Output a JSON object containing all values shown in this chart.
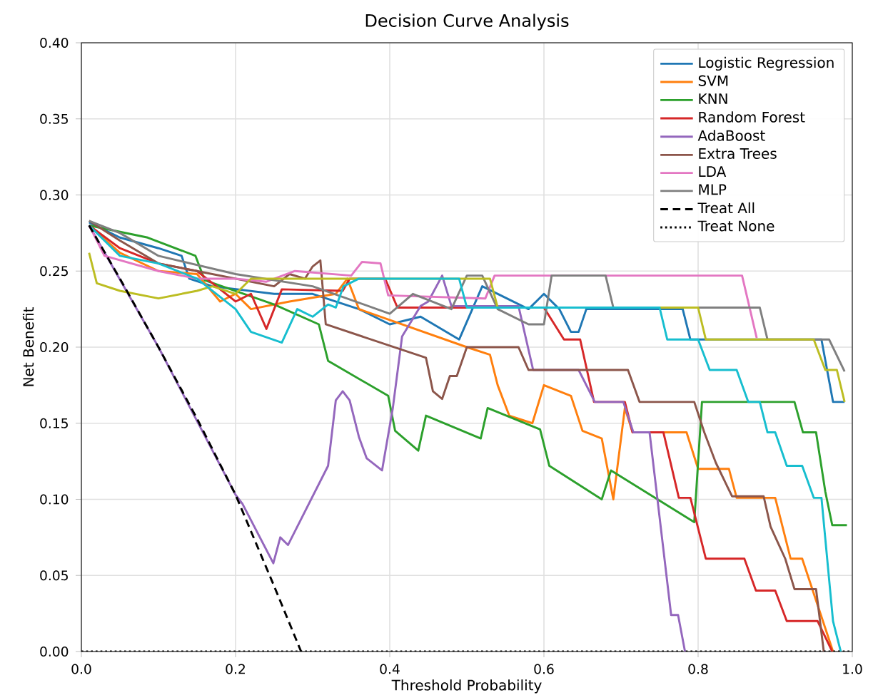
{
  "chart_data": {
    "type": "line",
    "title": "Decision Curve Analysis",
    "xlabel": "Threshold Probability",
    "ylabel": "Net Benefit",
    "xlim": [
      0,
      1
    ],
    "ylim": [
      0,
      0.4
    ],
    "xticks": [
      {
        "value": 0,
        "label": "0.0"
      },
      {
        "value": 0.2,
        "label": "0.2"
      },
      {
        "value": 0.4,
        "label": "0.4"
      },
      {
        "value": 0.6,
        "label": "0.6"
      },
      {
        "value": 0.8,
        "label": "0.8"
      },
      {
        "value": 1,
        "label": "1.0"
      }
    ],
    "yticks": [
      {
        "value": 0,
        "label": "0.00"
      },
      {
        "value": 0.05,
        "label": "0.05"
      },
      {
        "value": 0.1,
        "label": "0.10"
      },
      {
        "value": 0.15,
        "label": "0.15"
      },
      {
        "value": 0.2,
        "label": "0.20"
      },
      {
        "value": 0.25,
        "label": "0.25"
      },
      {
        "value": 0.3,
        "label": "0.30"
      },
      {
        "value": 0.35,
        "label": "0.35"
      },
      {
        "value": 0.4,
        "label": "0.40"
      }
    ],
    "grid": true,
    "legend": "top right",
    "marker": "none",
    "series": [
      {
        "name": "Logistic Regression",
        "color": "#1f77b4",
        "x": [
          0.01,
          0.05,
          0.1,
          0.13,
          0.14,
          0.17,
          0.25,
          0.3,
          0.36,
          0.4,
          0.44,
          0.49,
          0.52,
          0.58,
          0.6,
          0.62,
          0.635,
          0.645,
          0.655,
          0.78,
          0.79,
          0.96,
          0.975,
          0.99
        ],
        "values": [
          0.282,
          0.272,
          0.265,
          0.26,
          0.245,
          0.24,
          0.235,
          0.235,
          0.225,
          0.215,
          0.22,
          0.205,
          0.24,
          0.225,
          0.235,
          0.225,
          0.21,
          0.21,
          0.225,
          0.225,
          0.205,
          0.205,
          0.164,
          0.164
        ]
      },
      {
        "name": "SVM",
        "color": "#ff7f0e",
        "x": [
          0.01,
          0.05,
          0.1,
          0.15,
          0.18,
          0.2,
          0.22,
          0.27,
          0.33,
          0.345,
          0.36,
          0.5,
          0.53,
          0.54,
          0.555,
          0.585,
          0.6,
          0.635,
          0.65,
          0.675,
          0.69,
          0.705,
          0.715,
          0.785,
          0.8,
          0.84,
          0.85,
          0.9,
          0.92,
          0.935,
          0.975
        ],
        "values": [
          0.28,
          0.262,
          0.25,
          0.248,
          0.23,
          0.235,
          0.225,
          0.23,
          0.235,
          0.245,
          0.225,
          0.2,
          0.195,
          0.175,
          0.155,
          0.15,
          0.175,
          0.168,
          0.145,
          0.14,
          0.1,
          0.16,
          0.144,
          0.144,
          0.12,
          0.12,
          0.101,
          0.101,
          0.061,
          0.061,
          0
        ]
      },
      {
        "name": "KNN",
        "color": "#2ca02c",
        "x": [
          0.01,
          0.086,
          0.148,
          0.16,
          0.25,
          0.308,
          0.32,
          0.398,
          0.407,
          0.437,
          0.447,
          0.518,
          0.527,
          0.595,
          0.607,
          0.675,
          0.687,
          0.795,
          0.805,
          0.925,
          0.936,
          0.953,
          0.965,
          0.974,
          0.993
        ],
        "values": [
          0.28,
          0.272,
          0.26,
          0.244,
          0.228,
          0.215,
          0.191,
          0.168,
          0.145,
          0.132,
          0.155,
          0.14,
          0.16,
          0.146,
          0.122,
          0.1,
          0.119,
          0.085,
          0.164,
          0.164,
          0.144,
          0.144,
          0.105,
          0.083,
          0.083
        ]
      },
      {
        "name": "Random Forest",
        "color": "#d62728",
        "x": [
          0.01,
          0.05,
          0.1,
          0.15,
          0.2,
          0.22,
          0.24,
          0.26,
          0.339,
          0.348,
          0.394,
          0.41,
          0.6,
          0.626,
          0.647,
          0.665,
          0.705,
          0.715,
          0.755,
          0.775,
          0.79,
          0.81,
          0.86,
          0.875,
          0.9,
          0.915,
          0.955,
          0.974
        ],
        "values": [
          0.28,
          0.265,
          0.255,
          0.25,
          0.23,
          0.235,
          0.212,
          0.238,
          0.237,
          0.245,
          0.245,
          0.226,
          0.226,
          0.205,
          0.205,
          0.164,
          0.164,
          0.144,
          0.144,
          0.101,
          0.101,
          0.061,
          0.061,
          0.04,
          0.04,
          0.02,
          0.02,
          0
        ]
      },
      {
        "name": "AdaBoost",
        "color": "#9467bd",
        "x": [
          0.01,
          0.1,
          0.2,
          0.209,
          0.249,
          0.258,
          0.268,
          0.286,
          0.32,
          0.33,
          0.339,
          0.348,
          0.36,
          0.37,
          0.39,
          0.404,
          0.416,
          0.44,
          0.45,
          0.468,
          0.48,
          0.567,
          0.586,
          0.645,
          0.666,
          0.703,
          0.716,
          0.737,
          0.765,
          0.774,
          0.783
        ],
        "values": [
          0.28,
          0.2,
          0.103,
          0.097,
          0.058,
          0.075,
          0.07,
          0.088,
          0.122,
          0.165,
          0.171,
          0.165,
          0.141,
          0.127,
          0.119,
          0.16,
          0.207,
          0.227,
          0.23,
          0.247,
          0.227,
          0.227,
          0.185,
          0.185,
          0.164,
          0.164,
          0.144,
          0.144,
          0.024,
          0.024,
          0
        ]
      },
      {
        "name": "Extra Trees",
        "color": "#8c564b",
        "x": [
          0.01,
          0.05,
          0.1,
          0.15,
          0.2,
          0.25,
          0.27,
          0.29,
          0.3,
          0.31,
          0.317,
          0.447,
          0.456,
          0.468,
          0.478,
          0.487,
          0.5,
          0.567,
          0.58,
          0.709,
          0.724,
          0.795,
          0.808,
          0.823,
          0.844,
          0.885,
          0.894,
          0.913,
          0.925,
          0.953,
          0.963
        ],
        "values": [
          0.283,
          0.27,
          0.255,
          0.25,
          0.245,
          0.24,
          0.248,
          0.245,
          0.253,
          0.257,
          0.215,
          0.193,
          0.171,
          0.166,
          0.181,
          0.181,
          0.2,
          0.2,
          0.185,
          0.185,
          0.164,
          0.164,
          0.144,
          0.124,
          0.102,
          0.102,
          0.082,
          0.061,
          0.041,
          0.041,
          0
        ]
      },
      {
        "name": "LDA",
        "color": "#e377c2",
        "x": [
          0.01,
          0.03,
          0.1,
          0.15,
          0.2,
          0.24,
          0.277,
          0.35,
          0.364,
          0.388,
          0.398,
          0.524,
          0.536,
          0.857,
          0.876
        ],
        "values": [
          0.28,
          0.26,
          0.25,
          0.245,
          0.245,
          0.243,
          0.25,
          0.247,
          0.256,
          0.255,
          0.234,
          0.232,
          0.247,
          0.247,
          0.206
        ]
      },
      {
        "name": "MLP",
        "color": "#7f7f7f",
        "x": [
          0.01,
          0.05,
          0.1,
          0.2,
          0.3,
          0.4,
          0.43,
          0.48,
          0.5,
          0.52,
          0.54,
          0.58,
          0.6,
          0.61,
          0.68,
          0.69,
          0.88,
          0.89,
          0.97,
          0.99
        ],
        "values": [
          0.283,
          0.275,
          0.26,
          0.248,
          0.24,
          0.222,
          0.235,
          0.225,
          0.247,
          0.247,
          0.225,
          0.215,
          0.215,
          0.247,
          0.247,
          0.226,
          0.226,
          0.205,
          0.205,
          0.184
        ]
      },
      {
        "color": "#bcbd22",
        "x": [
          0.01,
          0.02,
          0.05,
          0.1,
          0.15,
          0.17,
          0.2,
          0.22,
          0.3,
          0.53,
          0.54,
          0.8,
          0.81,
          0.95,
          0.965,
          0.98,
          0.99
        ],
        "values": [
          0.262,
          0.242,
          0.237,
          0.232,
          0.237,
          0.24,
          0.235,
          0.245,
          0.245,
          0.245,
          0.226,
          0.226,
          0.205,
          0.205,
          0.185,
          0.185,
          0.164
        ]
      },
      {
        "color": "#17becf",
        "x": [
          0.01,
          0.05,
          0.1,
          0.15,
          0.2,
          0.22,
          0.26,
          0.28,
          0.3,
          0.32,
          0.33,
          0.34,
          0.36,
          0.49,
          0.5,
          0.75,
          0.76,
          0.8,
          0.815,
          0.85,
          0.865,
          0.88,
          0.89,
          0.9,
          0.915,
          0.935,
          0.95,
          0.96,
          0.975,
          0.985
        ],
        "values": [
          0.28,
          0.26,
          0.255,
          0.245,
          0.225,
          0.21,
          0.203,
          0.225,
          0.22,
          0.228,
          0.226,
          0.24,
          0.245,
          0.245,
          0.226,
          0.226,
          0.205,
          0.205,
          0.185,
          0.185,
          0.164,
          0.164,
          0.144,
          0.144,
          0.122,
          0.122,
          0.101,
          0.101,
          0.02,
          0
        ]
      },
      {
        "name": "Treat All",
        "color": "#000000",
        "line_style": "dashed",
        "x": [
          0.01,
          0.05,
          0.1,
          0.15,
          0.2,
          0.25,
          0.285
        ],
        "values": [
          0.28,
          0.245,
          0.2,
          0.153,
          0.103,
          0.043,
          0
        ]
      },
      {
        "name": "Treat None",
        "color": "#000000",
        "line_style": "dotted",
        "x": [
          0,
          1
        ],
        "values": [
          0,
          0
        ]
      }
    ]
  }
}
